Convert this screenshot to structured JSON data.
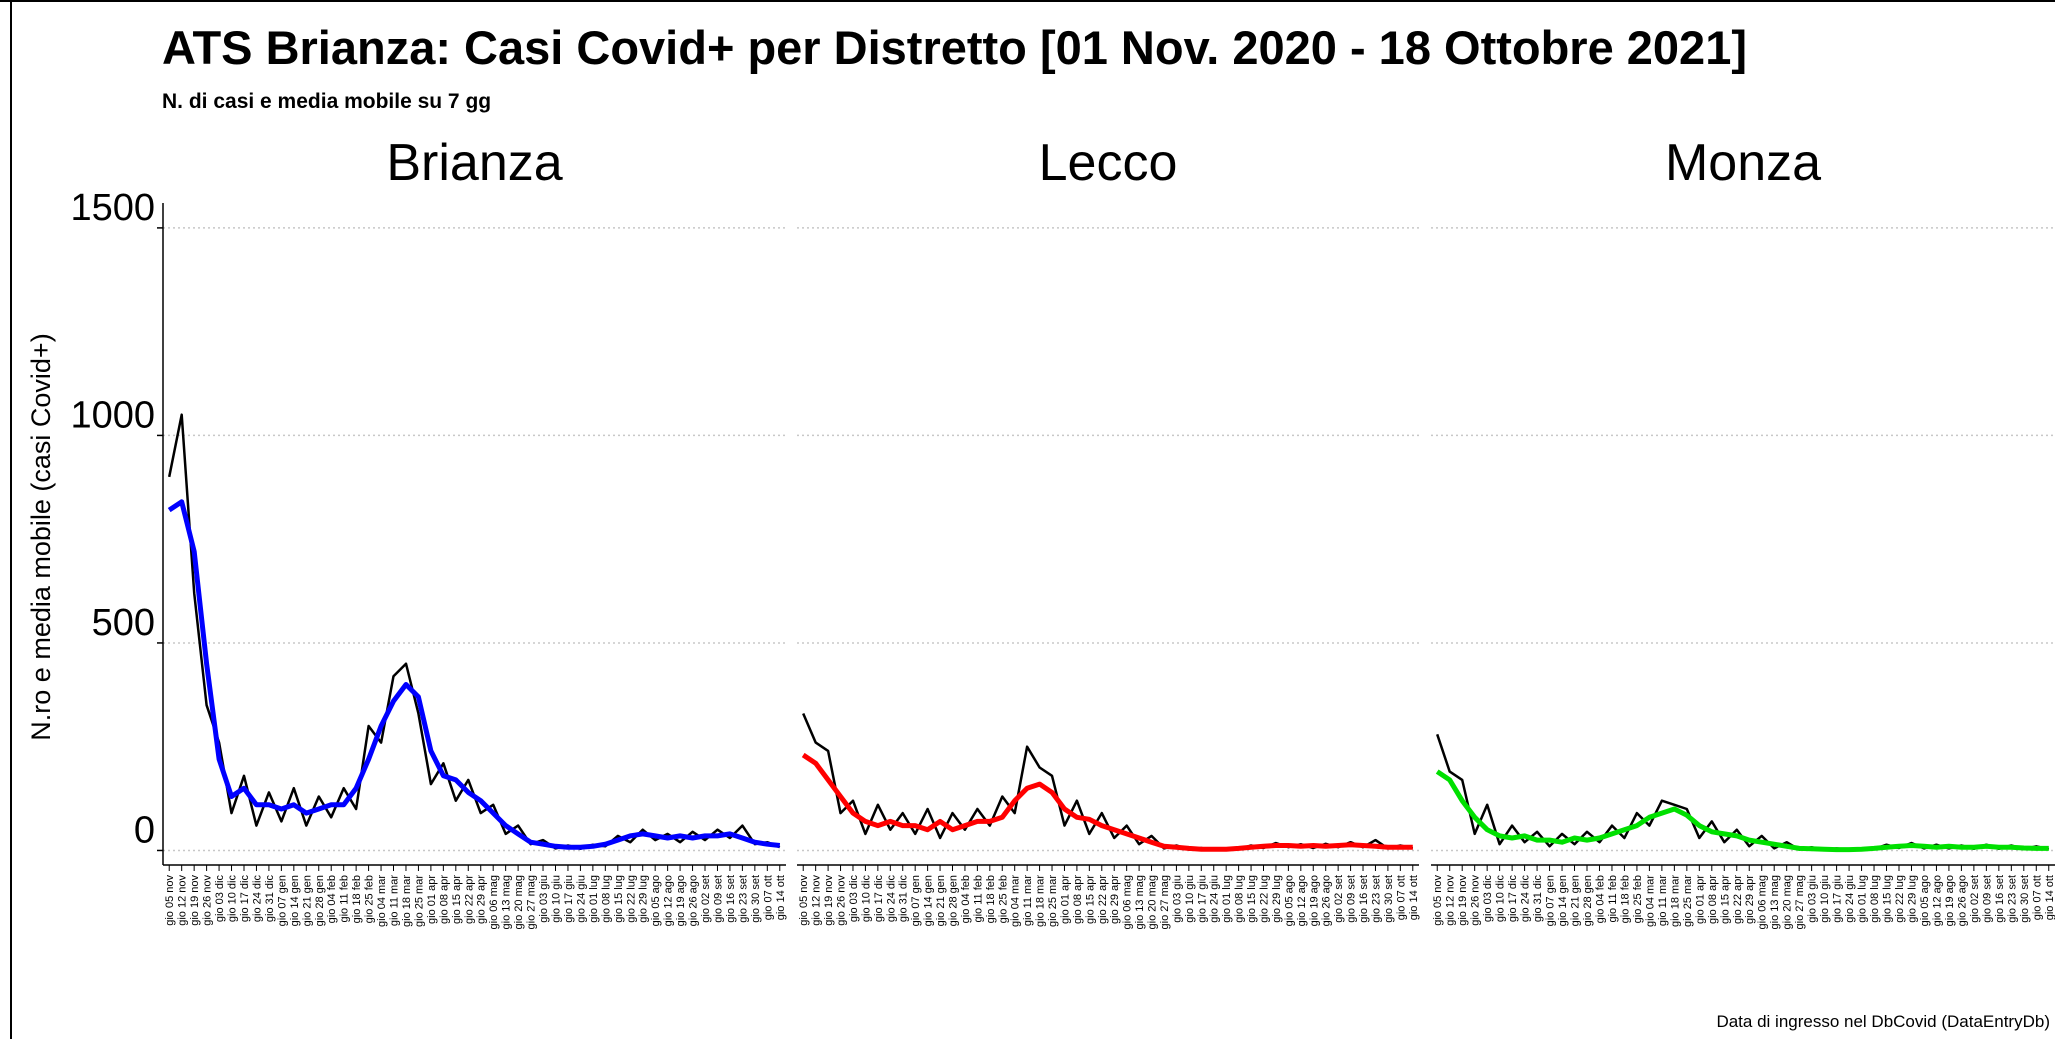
{
  "title": "ATS Brianza: Casi Covid+ per Distretto [01 Nov. 2020 - 18 Ottobre 2021]",
  "subtitle": "N. di casi e media mobile su 7 gg",
  "caption": "Data di ingresso nel DbCovid (DataEntryDb)",
  "ylabel": "N.ro e media mobile (casi Covid+)",
  "chart_data": [
    {
      "type": "line",
      "title": "Brianza",
      "categories": [
        "gio 05 nov",
        "gio 12 nov",
        "gio 19 nov",
        "gio 26 nov",
        "gio 03 dic",
        "gio 10 dic",
        "gio 17 dic",
        "gio 24 dic",
        "gio 31 dic",
        "gio 07 gen",
        "gio 14 gen",
        "gio 21 gen",
        "gio 28 gen",
        "gio 04 feb",
        "gio 11 feb",
        "gio 18 feb",
        "gio 25 feb",
        "gio 04 mar",
        "gio 11 mar",
        "gio 18 mar",
        "gio 25 mar",
        "gio 01 apr",
        "gio 08 apr",
        "gio 15 apr",
        "gio 22 apr",
        "gio 29 apr",
        "gio 06 mag",
        "gio 13 mag",
        "gio 20 mag",
        "gio 27 mag",
        "gio 03 giu",
        "gio 10 giu",
        "gio 17 giu",
        "gio 24 giu",
        "gio 01 lug",
        "gio 08 lug",
        "gio 15 lug",
        "gio 22 lug",
        "gio 29 lug",
        "gio 05 ago",
        "gio 12 ago",
        "gio 19 ago",
        "gio 26 ago",
        "gio 02 set",
        "gio 09 set",
        "gio 16 set",
        "gio 23 set",
        "gio 30 set",
        "gio 07 ott",
        "gio 14 ott"
      ],
      "series": [
        {
          "color": "#000000",
          "values": [
            900,
            1050,
            620,
            350,
            260,
            90,
            180,
            60,
            140,
            70,
            150,
            60,
            130,
            80,
            150,
            100,
            300,
            260,
            420,
            450,
            330,
            160,
            210,
            120,
            170,
            90,
            110,
            40,
            60,
            15,
            25,
            5,
            12,
            4,
            14,
            10,
            35,
            20,
            50,
            25,
            40,
            20,
            45,
            25,
            50,
            30,
            60,
            15,
            20,
            8
          ]
        },
        {
          "color": "#0000ff",
          "values": [
            820,
            840,
            720,
            450,
            220,
            130,
            150,
            110,
            110,
            100,
            110,
            90,
            100,
            110,
            110,
            150,
            220,
            300,
            360,
            400,
            370,
            240,
            180,
            170,
            140,
            120,
            90,
            60,
            40,
            20,
            15,
            10,
            8,
            8,
            10,
            15,
            25,
            35,
            40,
            35,
            30,
            35,
            30,
            35,
            35,
            40,
            30,
            20,
            15,
            12
          ]
        }
      ],
      "ylim": [
        -35,
        1560
      ],
      "yticks": [
        0,
        500,
        1000,
        1500
      ],
      "grid": true
    },
    {
      "type": "line",
      "title": "Lecco",
      "categories": [
        "gio 05 nov",
        "gio 12 nov",
        "gio 19 nov",
        "gio 26 nov",
        "gio 03 dic",
        "gio 10 dic",
        "gio 17 dic",
        "gio 24 dic",
        "gio 31 dic",
        "gio 07 gen",
        "gio 14 gen",
        "gio 21 gen",
        "gio 28 gen",
        "gio 04 feb",
        "gio 11 feb",
        "gio 18 feb",
        "gio 25 feb",
        "gio 04 mar",
        "gio 11 mar",
        "gio 18 mar",
        "gio 25 mar",
        "gio 01 apr",
        "gio 08 apr",
        "gio 15 apr",
        "gio 22 apr",
        "gio 29 apr",
        "gio 06 mag",
        "gio 13 mag",
        "gio 20 mag",
        "gio 27 mag",
        "gio 03 giu",
        "gio 10 giu",
        "gio 17 giu",
        "gio 24 giu",
        "gio 01 lug",
        "gio 08 lug",
        "gio 15 lug",
        "gio 22 lug",
        "gio 29 lug",
        "gio 05 ago",
        "gio 12 ago",
        "gio 19 ago",
        "gio 26 ago",
        "gio 02 set",
        "gio 09 set",
        "gio 16 set",
        "gio 23 set",
        "gio 30 set",
        "gio 07 ott",
        "gio 14 ott"
      ],
      "series": [
        {
          "color": "#000000",
          "values": [
            330,
            260,
            240,
            90,
            120,
            40,
            110,
            50,
            90,
            40,
            100,
            30,
            90,
            50,
            100,
            60,
            130,
            90,
            250,
            200,
            180,
            60,
            120,
            40,
            90,
            30,
            60,
            15,
            35,
            5,
            12,
            2,
            6,
            1,
            5,
            3,
            12,
            6,
            18,
            8,
            15,
            6,
            16,
            8,
            20,
            8,
            25,
            5,
            12,
            5
          ]
        },
        {
          "color": "#ff0000",
          "values": [
            230,
            210,
            170,
            130,
            90,
            70,
            60,
            70,
            60,
            60,
            50,
            70,
            50,
            60,
            70,
            70,
            80,
            120,
            150,
            160,
            140,
            100,
            80,
            75,
            60,
            50,
            40,
            30,
            20,
            10,
            8,
            5,
            3,
            3,
            3,
            5,
            8,
            10,
            12,
            12,
            10,
            12,
            10,
            12,
            14,
            12,
            10,
            8,
            8,
            8
          ]
        }
      ],
      "ylim": [
        -35,
        1560
      ],
      "yticks": [
        0,
        500,
        1000,
        1500
      ],
      "grid": true
    },
    {
      "type": "line",
      "title": "Monza",
      "categories": [
        "gio 05 nov",
        "gio 12 nov",
        "gio 19 nov",
        "gio 26 nov",
        "gio 03 dic",
        "gio 10 dic",
        "gio 17 dic",
        "gio 24 dic",
        "gio 31 dic",
        "gio 07 gen",
        "gio 14 gen",
        "gio 21 gen",
        "gio 28 gen",
        "gio 04 feb",
        "gio 11 feb",
        "gio 18 feb",
        "gio 25 feb",
        "gio 04 mar",
        "gio 11 mar",
        "gio 18 mar",
        "gio 25 mar",
        "gio 01 apr",
        "gio 08 apr",
        "gio 15 apr",
        "gio 22 apr",
        "gio 29 apr",
        "gio 06 mag",
        "gio 13 mag",
        "gio 20 mag",
        "gio 27 mag",
        "gio 03 giu",
        "gio 10 giu",
        "gio 17 giu",
        "gio 24 giu",
        "gio 01 lug",
        "gio 08 lug",
        "gio 15 lug",
        "gio 22 lug",
        "gio 29 lug",
        "gio 05 ago",
        "gio 12 ago",
        "gio 19 ago",
        "gio 26 ago",
        "gio 02 set",
        "gio 09 set",
        "gio 16 set",
        "gio 23 set",
        "gio 30 set",
        "gio 07 ott",
        "gio 14 ott"
      ],
      "series": [
        {
          "color": "#000000",
          "values": [
            280,
            190,
            170,
            40,
            110,
            15,
            60,
            20,
            45,
            10,
            40,
            15,
            45,
            20,
            60,
            30,
            90,
            60,
            120,
            110,
            100,
            30,
            70,
            20,
            50,
            10,
            35,
            5,
            20,
            2,
            8,
            1,
            5,
            1,
            5,
            3,
            14,
            6,
            18,
            5,
            14,
            5,
            12,
            4,
            14,
            4,
            12,
            3,
            10,
            3
          ]
        },
        {
          "color": "#00e000",
          "values": [
            190,
            170,
            120,
            80,
            50,
            35,
            30,
            35,
            25,
            25,
            20,
            30,
            25,
            30,
            40,
            50,
            60,
            80,
            90,
            100,
            85,
            60,
            45,
            40,
            35,
            25,
            20,
            15,
            10,
            5,
            4,
            3,
            2,
            2,
            3,
            5,
            8,
            10,
            12,
            10,
            8,
            10,
            8,
            8,
            10,
            8,
            8,
            6,
            5,
            5
          ]
        }
      ],
      "ylim": [
        -35,
        1560
      ],
      "yticks": [
        0,
        500,
        1000,
        1500
      ],
      "grid": true
    }
  ]
}
